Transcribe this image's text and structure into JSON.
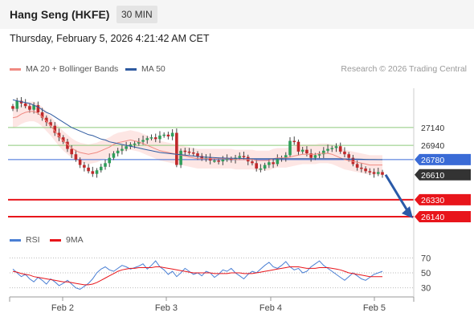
{
  "header": {
    "title": "Hang Seng (HKFE)",
    "timeframe": "30 MIN",
    "datetime": "Thursday, February 5, 2026 4:21:42 AM CET"
  },
  "price_legend": [
    {
      "label": "MA 20 + Bollinger Bands",
      "color": "#f08a82"
    },
    {
      "label": "MA 50",
      "color": "#2e5aa0"
    }
  ],
  "credit": "Research © 2026 Trading Central",
  "rsi_legend": [
    {
      "label": "RSI",
      "color": "#4a7fd4"
    },
    {
      "label": "9MA",
      "color": "#e8151b"
    }
  ],
  "colors": {
    "bull": "#2f9e5a",
    "bear": "#c0282a",
    "support": "#e8151b",
    "resistance": "#8ec97a",
    "pivot": "#3a6bd6",
    "current": "#333333",
    "arrow": "#2a5aa8",
    "band_fill": "#fde3e1"
  },
  "chart_data": [
    {
      "type": "candlestick",
      "title": "Hang Seng (HKFE)",
      "x_ticks": [
        "Feb 2",
        "Feb 3",
        "Feb 4",
        "Feb 5"
      ],
      "y_range": [
        26050,
        27580
      ],
      "levels": [
        {
          "label": "27140",
          "value": 27140,
          "kind": "resistance"
        },
        {
          "label": "26940",
          "value": 26940,
          "kind": "resistance"
        },
        {
          "label": "26780",
          "value": 26780,
          "kind": "pivot"
        },
        {
          "label": "26610",
          "value": 26610,
          "kind": "current"
        },
        {
          "label": "26330",
          "value": 26330,
          "kind": "support"
        },
        {
          "label": "26140",
          "value": 26140,
          "kind": "support"
        }
      ],
      "close_series": [
        27350,
        27440,
        27410,
        27380,
        27340,
        27390,
        27310,
        27250,
        27200,
        27160,
        27080,
        27030,
        26980,
        26900,
        26840,
        26780,
        26720,
        26690,
        26650,
        26620,
        26660,
        26700,
        26740,
        26800,
        26850,
        26880,
        26900,
        26930,
        26950,
        26960,
        26980,
        27000,
        27020,
        27030,
        27010,
        27050,
        27060,
        27040,
        27080,
        26720,
        26880,
        26870,
        26860,
        26850,
        26820,
        26790,
        26800,
        26770,
        26770,
        26760,
        26780,
        26790,
        26780,
        26800,
        26820,
        26810,
        26760,
        26740,
        26680,
        26680,
        26720,
        26750,
        26730,
        26790,
        26800,
        26830,
        26990,
        26980,
        26870,
        26890,
        26850,
        26800,
        26830,
        26840,
        26880,
        26900,
        26910,
        26930,
        26870,
        26840,
        26800,
        26730,
        26690,
        26680,
        26650,
        26640,
        26620,
        26640,
        26610
      ],
      "ma20": [
        27250,
        27260,
        27290,
        27310,
        27320,
        27320,
        27300,
        27260,
        27210,
        27160,
        27100,
        27040,
        26990,
        26950,
        26910,
        26880,
        26860,
        26850,
        26840,
        26850,
        26860,
        26880,
        26900,
        26920,
        26950,
        26970,
        26980,
        26990,
        27000,
        26990,
        26980,
        26960,
        26940,
        26920,
        26900,
        26880,
        26870,
        26860,
        26850,
        26840,
        26830,
        26820,
        26810,
        26800,
        26790,
        26790,
        26790,
        26790,
        26790,
        26790,
        26790,
        26790,
        26790,
        26780,
        26780,
        26780,
        26780,
        26780,
        26770,
        26770,
        26770,
        26770,
        26790,
        26800,
        26800,
        26800,
        26810,
        26820,
        26830,
        26840,
        26840,
        26840,
        26840,
        26850,
        26850,
        26850,
        26840,
        26820,
        26800,
        26780,
        26770,
        26760,
        26750,
        26740,
        26730,
        26720,
        26720,
        26720,
        26720
      ],
      "ma50": [
        27450,
        27440,
        27430,
        27420,
        27410,
        27390,
        27370,
        27340,
        27310,
        27290,
        27260,
        27230,
        27200,
        27170,
        27140,
        27120,
        27100,
        27080,
        27060,
        27050,
        27030,
        27010,
        27000,
        26980,
        26970,
        26960,
        26950,
        26940,
        26930,
        26920,
        26910,
        26900,
        26890,
        26880,
        26870,
        26860,
        26855,
        26850,
        26845,
        26840,
        26835,
        26830,
        26825,
        26820,
        26815,
        26810,
        26808,
        26805,
        26802,
        26800,
        26798,
        26796,
        26795,
        26794,
        26793,
        26792,
        26791,
        26790,
        26790,
        26790,
        26790,
        26790,
        26790,
        26790,
        26790,
        26790,
        26790,
        26790,
        26790,
        26790,
        26790,
        26790,
        26790,
        26790,
        26790,
        26790,
        26790,
        26790,
        26789,
        26788,
        26787,
        26786,
        26785,
        26784,
        26783,
        26782,
        26781,
        26780,
        26780
      ]
    },
    {
      "type": "line",
      "title": "RSI",
      "y_ticks": [
        "70",
        "50",
        "30"
      ],
      "y_range": [
        20,
        80
      ],
      "rsi": [
        55,
        50,
        45,
        48,
        42,
        38,
        44,
        40,
        35,
        42,
        38,
        33,
        36,
        40,
        35,
        30,
        28,
        32,
        36,
        42,
        50,
        55,
        58,
        54,
        52,
        56,
        60,
        58,
        55,
        57,
        59,
        62,
        55,
        60,
        66,
        58,
        54,
        48,
        52,
        45,
        50,
        56,
        52,
        48,
        50,
        46,
        52,
        50,
        44,
        48,
        54,
        52,
        56,
        50,
        46,
        42,
        48,
        52,
        50,
        55,
        60,
        64,
        58,
        56,
        60,
        65,
        58,
        54,
        56,
        50,
        52,
        58,
        62,
        66,
        60,
        56,
        52,
        48,
        44,
        40,
        45,
        50,
        46,
        42,
        40,
        44,
        48,
        50,
        52
      ],
      "ma9": [
        52,
        51,
        49,
        48,
        47,
        45,
        44,
        43,
        42,
        41,
        40,
        39,
        38,
        38,
        37,
        36,
        35,
        34,
        34,
        35,
        37,
        40,
        43,
        46,
        49,
        52,
        54,
        55,
        56,
        56,
        57,
        57,
        57,
        57,
        58,
        58,
        57,
        56,
        55,
        54,
        53,
        52,
        51,
        50,
        50,
        50,
        50,
        50,
        49,
        49,
        49,
        49,
        50,
        50,
        50,
        49,
        49,
        49,
        50,
        51,
        52,
        53,
        54,
        55,
        56,
        57,
        58,
        58,
        58,
        57,
        56,
        56,
        56,
        57,
        57,
        57,
        56,
        55,
        54,
        52,
        50,
        49,
        48,
        47,
        46,
        45,
        45,
        45,
        45
      ]
    }
  ]
}
